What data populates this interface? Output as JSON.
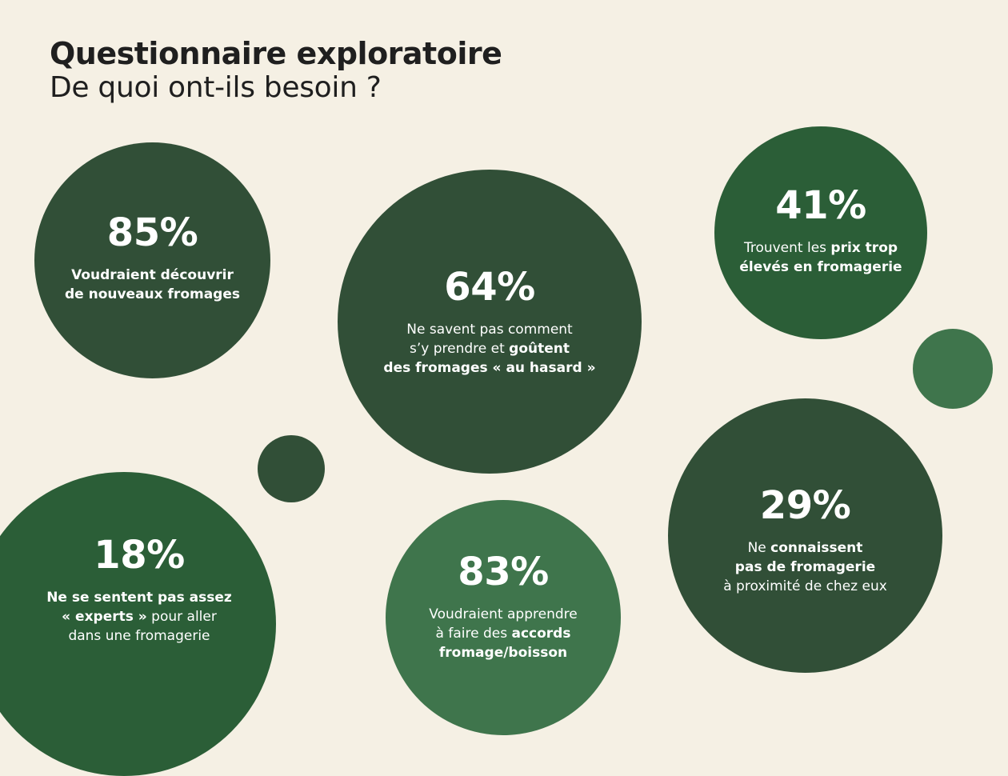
{
  "header": {
    "title": "Questionnaire exploratoire",
    "subtitle": "De quoi ont-ils besoin ?"
  },
  "colors": {
    "background": "#f5f0e4",
    "bubble_dark": "#314f37",
    "bubble_mid": "#2b5e37",
    "bubble_light": "#3f754c"
  },
  "stats": [
    {
      "percent": "85%",
      "lines": [
        [
          {
            "t": "Voudraient découvrir",
            "b": true
          }
        ],
        [
          {
            "t": "de nouveaux fromages",
            "b": true
          }
        ]
      ]
    },
    {
      "percent": "64%",
      "lines": [
        [
          {
            "t": "Ne savent pas comment",
            "b": false
          }
        ],
        [
          {
            "t": "s’y prendre et ",
            "b": false
          },
          {
            "t": "goûtent",
            "b": true
          }
        ],
        [
          {
            "t": "des fromages « au hasard »",
            "b": true
          }
        ]
      ]
    },
    {
      "percent": "41%",
      "lines": [
        [
          {
            "t": "Trouvent les ",
            "b": false
          },
          {
            "t": "prix trop",
            "b": true
          }
        ],
        [
          {
            "t": "élevés en fromagerie",
            "b": true
          }
        ]
      ]
    },
    {
      "percent": "29%",
      "lines": [
        [
          {
            "t": "Ne ",
            "b": false
          },
          {
            "t": "connaissent",
            "b": true
          }
        ],
        [
          {
            "t": "pas de fromagerie",
            "b": true
          }
        ],
        [
          {
            "t": "à proximité de chez eux",
            "b": false
          }
        ]
      ]
    },
    {
      "percent": "18%",
      "lines": [
        [
          {
            "t": "Ne se sentent pas assez",
            "b": true
          }
        ],
        [
          {
            "t": "« experts »",
            "b": true
          },
          {
            "t": " pour aller",
            "b": false
          }
        ],
        [
          {
            "t": "dans une fromagerie",
            "b": false
          }
        ]
      ]
    },
    {
      "percent": "83%",
      "lines": [
        [
          {
            "t": "Voudraient apprendre",
            "b": false
          }
        ],
        [
          {
            "t": "à faire des ",
            "b": false
          },
          {
            "t": "accords",
            "b": true
          }
        ],
        [
          {
            "t": "fromage/boisson",
            "b": true
          }
        ]
      ]
    }
  ]
}
